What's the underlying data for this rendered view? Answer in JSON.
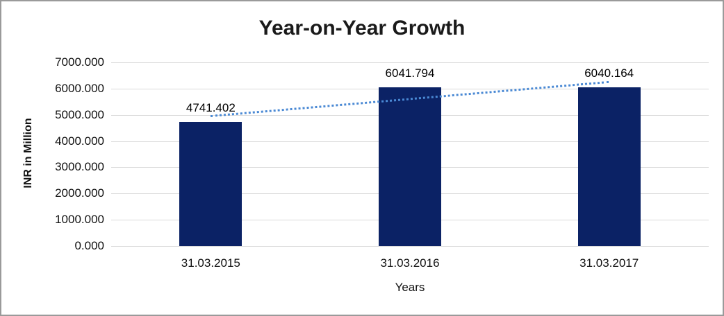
{
  "frame": {
    "background": "#ffffff",
    "border_color": "#9a9a9a"
  },
  "chart_data": {
    "type": "bar",
    "title": "Year-on-Year Growth",
    "categories": [
      "31.03.2015",
      "31.03.2016",
      "31.03.2017"
    ],
    "values": [
      4741.402,
      6041.794,
      6040.164
    ],
    "data_labels": [
      "4741.402",
      "6041.794",
      "6040.164"
    ],
    "xlabel": "Years",
    "ylabel": "INR in Million",
    "ylim": [
      0,
      7000
    ],
    "ytick_step": 1000,
    "ytick_labels": [
      "0.000",
      "1000.000",
      "2000.000",
      "3000.000",
      "4000.000",
      "5000.000",
      "6000.000",
      "7000.000"
    ],
    "grid": true,
    "legend": "none",
    "bar_color": "#0b2265",
    "gridline_color": "#d9d9d9",
    "text_color": "#111111",
    "trendline": {
      "type": "linear",
      "style": "dotted",
      "color": "#4a89d4"
    }
  }
}
